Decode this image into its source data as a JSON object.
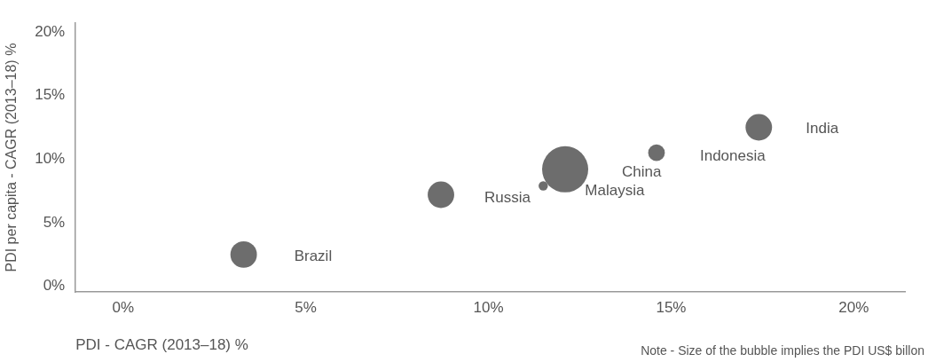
{
  "chart_data": {
    "type": "bubble",
    "xlabel": "PDI - CAGR (2013–18) %",
    "ylabel": "PDI per capita - CAGR (2013–18) %",
    "annotations": [
      "Note - Size of the bubble implies the PDI US$ billon"
    ],
    "xlim": [
      -1.3,
      21.4
    ],
    "ylim": [
      -0.45,
      20.7
    ],
    "xticks": [
      {
        "value": 0,
        "label": "0%"
      },
      {
        "value": 5,
        "label": "5%"
      },
      {
        "value": 10,
        "label": "10%"
      },
      {
        "value": 15,
        "label": "15%"
      },
      {
        "value": 20,
        "label": "20%"
      }
    ],
    "yticks": [
      {
        "value": 0,
        "label": "0%"
      },
      {
        "value": 5,
        "label": "5%"
      },
      {
        "value": 10,
        "label": "10%"
      },
      {
        "value": 15,
        "label": "15%"
      },
      {
        "value": 20,
        "label": "20%"
      }
    ],
    "grid": false,
    "legend": false,
    "series": [
      {
        "name": "Brazil",
        "color": "#6d6d6d",
        "x": [
          3.3
        ],
        "values": [
          2.5
        ],
        "sizes": [
          0.33
        ]
      },
      {
        "name": "Russia",
        "color": "#6d6d6d",
        "x": [
          8.7
        ],
        "values": [
          7.2
        ],
        "sizes": [
          0.33
        ]
      },
      {
        "name": "Malaysia",
        "color": "#6d6d6d",
        "x": [
          11.5
        ],
        "values": [
          7.9
        ],
        "sizes": [
          0.04
        ]
      },
      {
        "name": "China",
        "color": "#6d6d6d",
        "x": [
          12.1
        ],
        "values": [
          9.2
        ],
        "sizes": [
          1
        ]
      },
      {
        "name": "Indonesia",
        "color": "#6d6d6d",
        "x": [
          14.6
        ],
        "values": [
          10.5
        ],
        "sizes": [
          0.13
        ]
      },
      {
        "name": "India",
        "color": "#6d6d6d",
        "x": [
          17.4
        ],
        "values": [
          12.5
        ],
        "sizes": [
          0.33
        ]
      }
    ]
  }
}
